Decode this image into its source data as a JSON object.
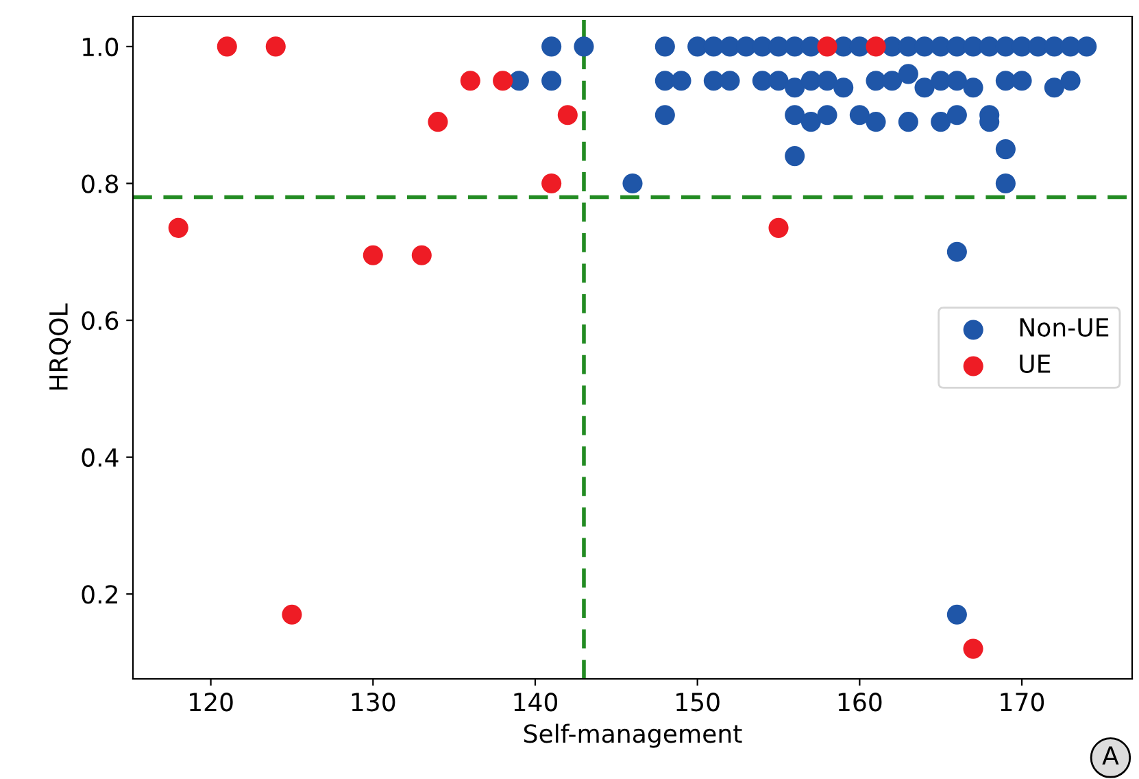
{
  "chart_data": {
    "type": "scatter",
    "xlabel": "Self-management",
    "ylabel": "HRQOL",
    "xlim": [
      115.2,
      176.8
    ],
    "ylim": [
      0.076,
      1.044
    ],
    "xticks": [
      120,
      130,
      140,
      150,
      160,
      170
    ],
    "yticks": [
      0.2,
      0.4,
      0.6,
      0.8,
      {
        "value": 1,
        "label": "1.0"
      }
    ],
    "grid": false,
    "legend": "center right",
    "marker": "circle",
    "series": [
      {
        "name": "Non-UE",
        "color": "#1f56a8",
        "x": [
          141,
          143,
          139,
          141,
          146,
          148,
          150,
          151,
          152,
          153,
          154,
          155,
          156,
          157,
          159,
          160,
          162,
          163,
          164,
          165,
          166,
          167,
          168,
          169,
          170,
          171,
          172,
          173,
          174,
          148,
          149,
          151,
          152,
          154,
          155,
          156,
          157,
          158,
          159,
          161,
          162,
          163,
          164,
          165,
          166,
          167,
          169,
          170,
          172,
          173,
          148,
          156,
          157,
          158,
          160,
          161,
          163,
          165,
          166,
          168,
          168,
          156,
          169,
          169,
          166,
          166
        ],
        "values": [
          1.0,
          1.0,
          0.95,
          0.95,
          0.8,
          1.0,
          1.0,
          1.0,
          1.0,
          1.0,
          1.0,
          1.0,
          1.0,
          1.0,
          1.0,
          1.0,
          1.0,
          1.0,
          1.0,
          1.0,
          1.0,
          1.0,
          1.0,
          1.0,
          1.0,
          1.0,
          1.0,
          1.0,
          1.0,
          0.95,
          0.95,
          0.95,
          0.95,
          0.95,
          0.95,
          0.94,
          0.95,
          0.95,
          0.94,
          0.95,
          0.95,
          0.96,
          0.94,
          0.95,
          0.95,
          0.94,
          0.95,
          0.95,
          0.94,
          0.95,
          0.9,
          0.9,
          0.89,
          0.9,
          0.9,
          0.89,
          0.89,
          0.89,
          0.9,
          0.9,
          0.89,
          0.84,
          0.85,
          0.8,
          0.7,
          0.17
        ]
      },
      {
        "name": "UE",
        "color": "#ee1c25",
        "x": [
          121,
          124,
          136,
          138,
          142,
          134,
          141,
          118,
          130,
          133,
          125,
          158,
          161,
          155,
          167
        ],
        "values": [
          1.0,
          1.0,
          0.95,
          0.95,
          0.9,
          0.89,
          0.8,
          0.735,
          0.695,
          0.695,
          0.17,
          1.0,
          1.0,
          0.735,
          0.12
        ]
      }
    ],
    "ref_lines": [
      {
        "axis": "x",
        "value": 143,
        "color": "#228b22",
        "line_style": "dashed"
      },
      {
        "axis": "y",
        "value": 0.78,
        "color": "#228b22",
        "line_style": "dashed"
      }
    ],
    "annotations": [
      "A"
    ]
  }
}
